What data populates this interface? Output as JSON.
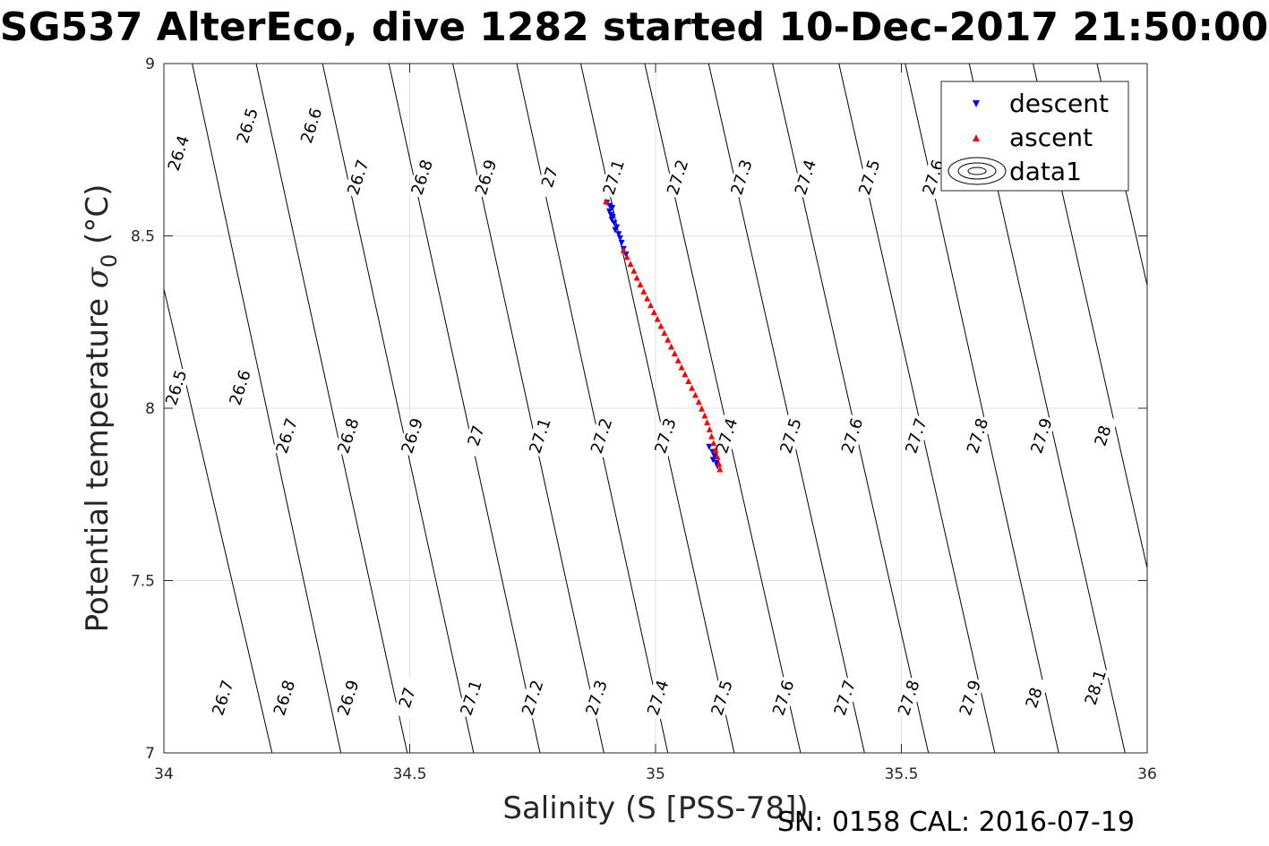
{
  "figure": {
    "title": "SG537 AlterEco, dive 1282 started 10-Dec-2017 21:50:00",
    "footer": "SN: 0158  CAL: 2016-07-19"
  },
  "chart_data": {
    "type": "scatter",
    "title": "SG537 AlterEco, dive 1282 started 10-Dec-2017 21:50:00",
    "xlabel": "Salinity (S [PSS-78])",
    "ylabel_text": "Potential temperature ",
    "ylabel_symbol": "σ",
    "ylabel_subscript": "0",
    "ylabel_unit": " (°C)",
    "xlim": [
      34,
      36
    ],
    "ylim": [
      7,
      9
    ],
    "xticks": [
      "34",
      "34.5",
      "35",
      "35.5",
      "36"
    ],
    "yticks": [
      "7",
      "7.5",
      "8",
      "8.5",
      "9"
    ],
    "grid": true,
    "legend_position": "top-right",
    "legend": [
      "descent",
      "ascent",
      "data1"
    ],
    "colors": {
      "descent": "#0000ff",
      "ascent": "#ff0000",
      "contour": "#000000",
      "grid": "#e0e0e0"
    },
    "series": [
      {
        "name": "descent",
        "marker": "triangle-down",
        "points": [
          [
            34.901,
            8.597
          ],
          [
            34.907,
            8.588
          ],
          [
            34.912,
            8.582
          ],
          [
            34.906,
            8.572
          ],
          [
            34.909,
            8.562
          ],
          [
            34.913,
            8.556
          ],
          [
            34.911,
            8.548
          ],
          [
            34.916,
            8.538
          ],
          [
            34.921,
            8.526
          ],
          [
            34.918,
            8.518
          ],
          [
            34.925,
            8.506
          ],
          [
            34.928,
            8.494
          ],
          [
            34.931,
            8.481
          ],
          [
            34.935,
            8.463
          ],
          [
            34.94,
            8.447
          ],
          [
            35.109,
            7.889
          ],
          [
            35.116,
            7.874
          ],
          [
            35.12,
            7.862
          ],
          [
            35.117,
            7.851
          ],
          [
            35.124,
            7.842
          ],
          [
            35.126,
            7.832
          ]
        ]
      },
      {
        "name": "ascent",
        "marker": "triangle-up",
        "points": [
          [
            34.899,
            8.599
          ],
          [
            34.935,
            8.458
          ],
          [
            34.942,
            8.438
          ],
          [
            34.949,
            8.418
          ],
          [
            34.956,
            8.398
          ],
          [
            34.962,
            8.378
          ],
          [
            34.969,
            8.358
          ],
          [
            34.976,
            8.338
          ],
          [
            34.983,
            8.318
          ],
          [
            34.99,
            8.298
          ],
          [
            34.997,
            8.278
          ],
          [
            35.004,
            8.258
          ],
          [
            35.011,
            8.238
          ],
          [
            35.018,
            8.218
          ],
          [
            35.025,
            8.198
          ],
          [
            35.032,
            8.178
          ],
          [
            35.039,
            8.158
          ],
          [
            35.046,
            8.138
          ],
          [
            35.053,
            8.118
          ],
          [
            35.06,
            8.098
          ],
          [
            35.067,
            8.078
          ],
          [
            35.074,
            8.058
          ],
          [
            35.081,
            8.038
          ],
          [
            35.088,
            8.018
          ],
          [
            35.094,
            7.998
          ],
          [
            35.1,
            7.978
          ],
          [
            35.105,
            7.958
          ],
          [
            35.11,
            7.938
          ],
          [
            35.114,
            7.918
          ],
          [
            35.118,
            7.898
          ],
          [
            35.122,
            7.878
          ],
          [
            35.126,
            7.858
          ],
          [
            35.129,
            7.838
          ],
          [
            35.131,
            7.822
          ]
        ]
      }
    ],
    "isopycnal_lines": [
      {
        "from": [
          33.885,
          9.05
        ],
        "to": [
          34.22,
          7.0
        ]
      },
      {
        "from": [
          34.05,
          9.05
        ],
        "to": [
          34.36,
          7.0
        ]
      },
      {
        "from": [
          34.18,
          9.05
        ],
        "to": [
          34.495,
          7.0
        ]
      },
      {
        "from": [
          34.315,
          9.05
        ],
        "to": [
          34.63,
          7.0
        ]
      },
      {
        "from": [
          34.45,
          9.05
        ],
        "to": [
          34.765,
          7.0
        ]
      },
      {
        "from": [
          34.58,
          9.05
        ],
        "to": [
          34.895,
          7.0
        ]
      },
      {
        "from": [
          34.71,
          9.05
        ],
        "to": [
          35.025,
          7.0
        ]
      },
      {
        "from": [
          34.84,
          9.05
        ],
        "to": [
          35.16,
          7.0
        ]
      },
      {
        "from": [
          34.97,
          9.05
        ],
        "to": [
          35.295,
          7.0
        ]
      },
      {
        "from": [
          35.1,
          9.05
        ],
        "to": [
          35.425,
          7.0
        ]
      },
      {
        "from": [
          35.23,
          9.05
        ],
        "to": [
          35.555,
          7.0
        ]
      },
      {
        "from": [
          35.365,
          9.05
        ],
        "to": [
          35.69,
          7.0
        ]
      },
      {
        "from": [
          35.5,
          9.05
        ],
        "to": [
          35.82,
          7.0
        ]
      },
      {
        "from": [
          35.63,
          9.05
        ],
        "to": [
          35.955,
          7.0
        ]
      },
      {
        "from": [
          35.76,
          9.05
        ],
        "to": [
          36.085,
          7.0
        ]
      },
      {
        "from": [
          35.89,
          9.05
        ],
        "to": [
          36.215,
          7.0
        ]
      }
    ],
    "contour_labels": [
      {
        "text": "26.4",
        "at": [
          34.03,
          8.74
        ],
        "angle": -72
      },
      {
        "text": "26.5",
        "at": [
          34.17,
          8.82
        ],
        "angle": -72
      },
      {
        "text": "26.6",
        "at": [
          34.3,
          8.82
        ],
        "angle": -72
      },
      {
        "text": "26.7",
        "at": [
          34.395,
          8.67
        ],
        "angle": -72
      },
      {
        "text": "26.8",
        "at": [
          34.525,
          8.67
        ],
        "angle": -72
      },
      {
        "text": "26.9",
        "at": [
          34.655,
          8.67
        ],
        "angle": -72
      },
      {
        "text": "27",
        "at": [
          34.785,
          8.67
        ],
        "angle": -72
      },
      {
        "text": "27.1",
        "at": [
          34.915,
          8.67
        ],
        "angle": -72
      },
      {
        "text": "27.2",
        "at": [
          35.045,
          8.67
        ],
        "angle": -72
      },
      {
        "text": "27.3",
        "at": [
          35.175,
          8.67
        ],
        "angle": -72
      },
      {
        "text": "27.4",
        "at": [
          35.305,
          8.67
        ],
        "angle": -72
      },
      {
        "text": "27.5",
        "at": [
          35.435,
          8.67
        ],
        "angle": -72
      },
      {
        "text": "27.6",
        "at": [
          35.565,
          8.67
        ],
        "angle": -72
      },
      {
        "text": "26.5",
        "at": [
          34.025,
          8.06
        ],
        "angle": -72
      },
      {
        "text": "26.6",
        "at": [
          34.155,
          8.06
        ],
        "angle": -72
      },
      {
        "text": "26.7",
        "at": [
          34.25,
          7.92
        ],
        "angle": -72
      },
      {
        "text": "26.8",
        "at": [
          34.375,
          7.92
        ],
        "angle": -72
      },
      {
        "text": "26.9",
        "at": [
          34.505,
          7.92
        ],
        "angle": -72
      },
      {
        "text": "27",
        "at": [
          34.635,
          7.92
        ],
        "angle": -72
      },
      {
        "text": "27.1",
        "at": [
          34.765,
          7.92
        ],
        "angle": -72
      },
      {
        "text": "27.2",
        "at": [
          34.89,
          7.92
        ],
        "angle": -72
      },
      {
        "text": "27.3",
        "at": [
          35.02,
          7.92
        ],
        "angle": -72
      },
      {
        "text": "27.4",
        "at": [
          35.145,
          7.92
        ],
        "angle": -72
      },
      {
        "text": "27.5",
        "at": [
          35.275,
          7.92
        ],
        "angle": -72
      },
      {
        "text": "27.6",
        "at": [
          35.4,
          7.92
        ],
        "angle": -72
      },
      {
        "text": "27.7",
        "at": [
          35.53,
          7.92
        ],
        "angle": -72
      },
      {
        "text": "27.8",
        "at": [
          35.655,
          7.92
        ],
        "angle": -72
      },
      {
        "text": "27.9",
        "at": [
          35.785,
          7.92
        ],
        "angle": -72
      },
      {
        "text": "28",
        "at": [
          35.91,
          7.92
        ],
        "angle": -72
      },
      {
        "text": "26.7",
        "at": [
          34.12,
          7.16
        ],
        "angle": -72
      },
      {
        "text": "26.8",
        "at": [
          34.245,
          7.16
        ],
        "angle": -72
      },
      {
        "text": "26.9",
        "at": [
          34.375,
          7.16
        ],
        "angle": -72
      },
      {
        "text": "27",
        "at": [
          34.495,
          7.16
        ],
        "angle": -72
      },
      {
        "text": "27.1",
        "at": [
          34.625,
          7.16
        ],
        "angle": -72
      },
      {
        "text": "27.2",
        "at": [
          34.75,
          7.16
        ],
        "angle": -72
      },
      {
        "text": "27.3",
        "at": [
          34.88,
          7.16
        ],
        "angle": -72
      },
      {
        "text": "27.4",
        "at": [
          35.005,
          7.16
        ],
        "angle": -72
      },
      {
        "text": "27.5",
        "at": [
          35.135,
          7.16
        ],
        "angle": -72
      },
      {
        "text": "27.6",
        "at": [
          35.26,
          7.16
        ],
        "angle": -72
      },
      {
        "text": "27.7",
        "at": [
          35.385,
          7.16
        ],
        "angle": -72
      },
      {
        "text": "27.8",
        "at": [
          35.515,
          7.16
        ],
        "angle": -72
      },
      {
        "text": "27.9",
        "at": [
          35.64,
          7.16
        ],
        "angle": -72
      },
      {
        "text": "28",
        "at": [
          35.77,
          7.16
        ],
        "angle": -72
      },
      {
        "text": "28.1",
        "at": [
          35.895,
          7.19
        ],
        "angle": -72
      }
    ]
  }
}
